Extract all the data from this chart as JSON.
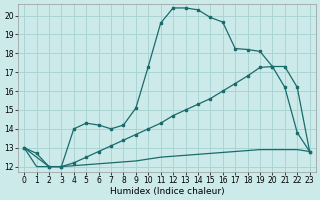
{
  "xlabel": "Humidex (Indice chaleur)",
  "bg_color": "#cceaea",
  "grid_color": "#aad4d4",
  "line_color": "#1a6b6b",
  "xlim": [
    -0.5,
    23.5
  ],
  "ylim": [
    11.7,
    20.6
  ],
  "yticks": [
    12,
    13,
    14,
    15,
    16,
    17,
    18,
    19,
    20
  ],
  "xticks": [
    0,
    1,
    2,
    3,
    4,
    5,
    6,
    7,
    8,
    9,
    10,
    11,
    12,
    13,
    14,
    15,
    16,
    17,
    18,
    19,
    20,
    21,
    22,
    23
  ],
  "s1_x": [
    0,
    1,
    2,
    3,
    4,
    5,
    6,
    7,
    8,
    9,
    10,
    11,
    12,
    13,
    14,
    15,
    16,
    17,
    18,
    19,
    20,
    21,
    22,
    23
  ],
  "s1_y": [
    13.0,
    12.7,
    12.0,
    12.0,
    14.0,
    14.3,
    14.2,
    14.0,
    14.2,
    15.1,
    17.3,
    19.6,
    20.4,
    20.4,
    20.3,
    19.9,
    19.65,
    18.25,
    18.2,
    18.1,
    17.3,
    16.2,
    13.8,
    12.8
  ],
  "s2_x": [
    0,
    2,
    3,
    4,
    5,
    6,
    7,
    8,
    9,
    10,
    11,
    12,
    13,
    14,
    15,
    16,
    17,
    18,
    19,
    20,
    21,
    22,
    23
  ],
  "s2_y": [
    13.0,
    12.0,
    12.0,
    12.2,
    12.5,
    12.8,
    13.1,
    13.4,
    13.7,
    14.0,
    14.3,
    14.7,
    15.0,
    15.3,
    15.6,
    16.0,
    16.4,
    16.8,
    17.25,
    17.3,
    17.3,
    16.2,
    12.8
  ],
  "s3_x": [
    0,
    1,
    2,
    3,
    4,
    5,
    6,
    7,
    8,
    9,
    10,
    11,
    12,
    13,
    14,
    15,
    16,
    17,
    18,
    19,
    20,
    21,
    22,
    23
  ],
  "s3_y": [
    13.0,
    12.0,
    12.0,
    12.0,
    12.05,
    12.1,
    12.15,
    12.2,
    12.25,
    12.3,
    12.4,
    12.5,
    12.55,
    12.6,
    12.65,
    12.7,
    12.75,
    12.8,
    12.85,
    12.9,
    12.9,
    12.9,
    12.9,
    12.8
  ]
}
